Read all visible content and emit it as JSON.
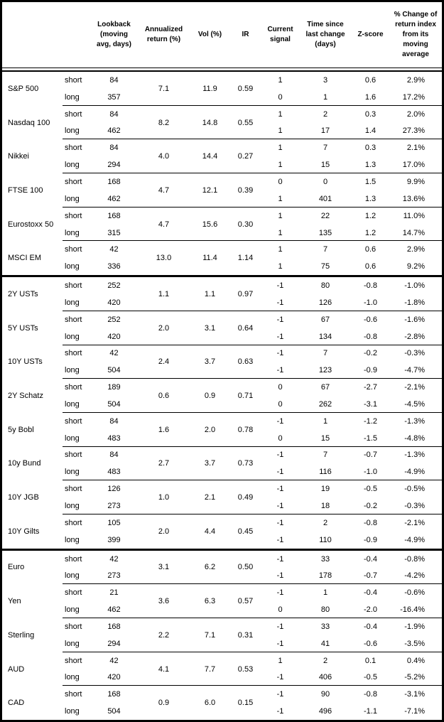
{
  "colors": {
    "border": "#000000",
    "background": "#ffffff",
    "text": "#000000"
  },
  "header": {
    "columns": [
      {
        "key": "asset",
        "label": ""
      },
      {
        "key": "horizon",
        "label": ""
      },
      {
        "key": "lookback",
        "label": "Lookback\n(moving\navg, days)"
      },
      {
        "key": "annualized_return",
        "label": "Annualized\nreturn (%)"
      },
      {
        "key": "vol",
        "label": "Vol (%)"
      },
      {
        "key": "ir",
        "label": "IR"
      },
      {
        "key": "signal",
        "label": "Current\nsignal"
      },
      {
        "key": "time_since_change",
        "label": "Time since\nlast change\n(days)"
      },
      {
        "key": "z_score",
        "label": "Z-score"
      },
      {
        "key": "pct_change",
        "label": "% Change of\nreturn index\nfrom its\nmoving\naverage"
      }
    ]
  },
  "sections": [
    {
      "name": "equities",
      "groups": [
        {
          "asset": "S&P 500",
          "annualized_return": "7.1",
          "vol": "11.9",
          "ir": "0.59",
          "rows": [
            {
              "horizon": "short",
              "lookback": "84",
              "signal": "1",
              "time_since_change": "3",
              "z_score": "0.6",
              "pct_change": "2.9%"
            },
            {
              "horizon": "long",
              "lookback": "357",
              "signal": "0",
              "time_since_change": "1",
              "z_score": "1.6",
              "pct_change": "17.2%"
            }
          ]
        },
        {
          "asset": "Nasdaq 100",
          "annualized_return": "8.2",
          "vol": "14.8",
          "ir": "0.55",
          "rows": [
            {
              "horizon": "short",
              "lookback": "84",
              "signal": "1",
              "time_since_change": "2",
              "z_score": "0.3",
              "pct_change": "2.0%"
            },
            {
              "horizon": "long",
              "lookback": "462",
              "signal": "1",
              "time_since_change": "17",
              "z_score": "1.4",
              "pct_change": "27.3%"
            }
          ]
        },
        {
          "asset": "Nikkei",
          "annualized_return": "4.0",
          "vol": "14.4",
          "ir": "0.27",
          "rows": [
            {
              "horizon": "short",
              "lookback": "84",
              "signal": "1",
              "time_since_change": "7",
              "z_score": "0.3",
              "pct_change": "2.1%"
            },
            {
              "horizon": "long",
              "lookback": "294",
              "signal": "1",
              "time_since_change": "15",
              "z_score": "1.3",
              "pct_change": "17.0%"
            }
          ]
        },
        {
          "asset": "FTSE 100",
          "annualized_return": "4.7",
          "vol": "12.1",
          "ir": "0.39",
          "rows": [
            {
              "horizon": "short",
              "lookback": "168",
              "signal": "0",
              "time_since_change": "0",
              "z_score": "1.5",
              "pct_change": "9.9%"
            },
            {
              "horizon": "long",
              "lookback": "462",
              "signal": "1",
              "time_since_change": "401",
              "z_score": "1.3",
              "pct_change": "13.6%"
            }
          ]
        },
        {
          "asset": "Eurostoxx 50",
          "annualized_return": "4.7",
          "vol": "15.6",
          "ir": "0.30",
          "rows": [
            {
              "horizon": "short",
              "lookback": "168",
              "signal": "1",
              "time_since_change": "22",
              "z_score": "1.2",
              "pct_change": "11.0%"
            },
            {
              "horizon": "long",
              "lookback": "315",
              "signal": "1",
              "time_since_change": "135",
              "z_score": "1.2",
              "pct_change": "14.7%"
            }
          ]
        },
        {
          "asset": "MSCI EM",
          "annualized_return": "13.0",
          "vol": "11.4",
          "ir": "1.14",
          "rows": [
            {
              "horizon": "short",
              "lookback": "42",
              "signal": "1",
              "time_since_change": "7",
              "z_score": "0.6",
              "pct_change": "2.9%"
            },
            {
              "horizon": "long",
              "lookback": "336",
              "signal": "1",
              "time_since_change": "75",
              "z_score": "0.6",
              "pct_change": "9.2%"
            }
          ]
        }
      ]
    },
    {
      "name": "bonds",
      "groups": [
        {
          "asset": "2Y USTs",
          "annualized_return": "1.1",
          "vol": "1.1",
          "ir": "0.97",
          "rows": [
            {
              "horizon": "short",
              "lookback": "252",
              "signal": "-1",
              "time_since_change": "80",
              "z_score": "-0.8",
              "pct_change": "-1.0%"
            },
            {
              "horizon": "long",
              "lookback": "420",
              "signal": "-1",
              "time_since_change": "126",
              "z_score": "-1.0",
              "pct_change": "-1.8%"
            }
          ]
        },
        {
          "asset": "5Y USTs",
          "annualized_return": "2.0",
          "vol": "3.1",
          "ir": "0.64",
          "rows": [
            {
              "horizon": "short",
              "lookback": "252",
              "signal": "-1",
              "time_since_change": "67",
              "z_score": "-0.6",
              "pct_change": "-1.6%"
            },
            {
              "horizon": "long",
              "lookback": "420",
              "signal": "-1",
              "time_since_change": "134",
              "z_score": "-0.8",
              "pct_change": "-2.8%"
            }
          ]
        },
        {
          "asset": "10Y USTs",
          "annualized_return": "2.4",
          "vol": "3.7",
          "ir": "0.63",
          "rows": [
            {
              "horizon": "short",
              "lookback": "42",
              "signal": "-1",
              "time_since_change": "7",
              "z_score": "-0.2",
              "pct_change": "-0.3%"
            },
            {
              "horizon": "long",
              "lookback": "504",
              "signal": "-1",
              "time_since_change": "123",
              "z_score": "-0.9",
              "pct_change": "-4.7%"
            }
          ]
        },
        {
          "asset": "2Y Schatz",
          "annualized_return": "0.6",
          "vol": "0.9",
          "ir": "0.71",
          "rows": [
            {
              "horizon": "short",
              "lookback": "189",
              "signal": "0",
              "time_since_change": "67",
              "z_score": "-2.7",
              "pct_change": "-2.1%"
            },
            {
              "horizon": "long",
              "lookback": "504",
              "signal": "0",
              "time_since_change": "262",
              "z_score": "-3.1",
              "pct_change": "-4.5%"
            }
          ]
        },
        {
          "asset": "5y Bobl",
          "annualized_return": "1.6",
          "vol": "2.0",
          "ir": "0.78",
          "rows": [
            {
              "horizon": "short",
              "lookback": "84",
              "signal": "-1",
              "time_since_change": "1",
              "z_score": "-1.2",
              "pct_change": "-1.3%"
            },
            {
              "horizon": "long",
              "lookback": "483",
              "signal": "0",
              "time_since_change": "15",
              "z_score": "-1.5",
              "pct_change": "-4.8%"
            }
          ]
        },
        {
          "asset": "10y Bund",
          "annualized_return": "2.7",
          "vol": "3.7",
          "ir": "0.73",
          "rows": [
            {
              "horizon": "short",
              "lookback": "84",
              "signal": "-1",
              "time_since_change": "7",
              "z_score": "-0.7",
              "pct_change": "-1.3%"
            },
            {
              "horizon": "long",
              "lookback": "483",
              "signal": "-1",
              "time_since_change": "116",
              "z_score": "-1.0",
              "pct_change": "-4.9%"
            }
          ]
        },
        {
          "asset": "10Y JGB",
          "annualized_return": "1.0",
          "vol": "2.1",
          "ir": "0.49",
          "rows": [
            {
              "horizon": "short",
              "lookback": "126",
              "signal": "-1",
              "time_since_change": "19",
              "z_score": "-0.5",
              "pct_change": "-0.5%"
            },
            {
              "horizon": "long",
              "lookback": "273",
              "signal": "-1",
              "time_since_change": "18",
              "z_score": "-0.2",
              "pct_change": "-0.3%"
            }
          ]
        },
        {
          "asset": "10Y Gilts",
          "annualized_return": "2.0",
          "vol": "4.4",
          "ir": "0.45",
          "rows": [
            {
              "horizon": "short",
              "lookback": "105",
              "signal": "-1",
              "time_since_change": "2",
              "z_score": "-0.8",
              "pct_change": "-2.1%"
            },
            {
              "horizon": "long",
              "lookback": "399",
              "signal": "-1",
              "time_since_change": "110",
              "z_score": "-0.9",
              "pct_change": "-4.9%"
            }
          ]
        }
      ]
    },
    {
      "name": "currencies",
      "groups": [
        {
          "asset": "Euro",
          "annualized_return": "3.1",
          "vol": "6.2",
          "ir": "0.50",
          "rows": [
            {
              "horizon": "short",
              "lookback": "42",
              "signal": "-1",
              "time_since_change": "33",
              "z_score": "-0.4",
              "pct_change": "-0.8%"
            },
            {
              "horizon": "long",
              "lookback": "273",
              "signal": "-1",
              "time_since_change": "178",
              "z_score": "-0.7",
              "pct_change": "-4.2%"
            }
          ]
        },
        {
          "asset": "Yen",
          "annualized_return": "3.6",
          "vol": "6.3",
          "ir": "0.57",
          "rows": [
            {
              "horizon": "short",
              "lookback": "21",
              "signal": "-1",
              "time_since_change": "1",
              "z_score": "-0.4",
              "pct_change": "-0.6%"
            },
            {
              "horizon": "long",
              "lookback": "462",
              "signal": "0",
              "time_since_change": "80",
              "z_score": "-2.0",
              "pct_change": "-16.4%"
            }
          ]
        },
        {
          "asset": "Sterling",
          "annualized_return": "2.2",
          "vol": "7.1",
          "ir": "0.31",
          "rows": [
            {
              "horizon": "short",
              "lookback": "168",
              "signal": "-1",
              "time_since_change": "33",
              "z_score": "-0.4",
              "pct_change": "-1.9%"
            },
            {
              "horizon": "long",
              "lookback": "294",
              "signal": "-1",
              "time_since_change": "41",
              "z_score": "-0.6",
              "pct_change": "-3.5%"
            }
          ]
        },
        {
          "asset": "AUD",
          "annualized_return": "4.1",
          "vol": "7.7",
          "ir": "0.53",
          "rows": [
            {
              "horizon": "short",
              "lookback": "42",
              "signal": "1",
              "time_since_change": "2",
              "z_score": "0.1",
              "pct_change": "0.4%"
            },
            {
              "horizon": "long",
              "lookback": "420",
              "signal": "-1",
              "time_since_change": "406",
              "z_score": "-0.5",
              "pct_change": "-5.2%"
            }
          ]
        },
        {
          "asset": "CAD",
          "annualized_return": "0.9",
          "vol": "6.0",
          "ir": "0.15",
          "rows": [
            {
              "horizon": "short",
              "lookback": "168",
              "signal": "-1",
              "time_since_change": "90",
              "z_score": "-0.8",
              "pct_change": "-3.1%"
            },
            {
              "horizon": "long",
              "lookback": "504",
              "signal": "-1",
              "time_since_change": "496",
              "z_score": "-1.1",
              "pct_change": "-7.1%"
            }
          ]
        }
      ]
    }
  ]
}
